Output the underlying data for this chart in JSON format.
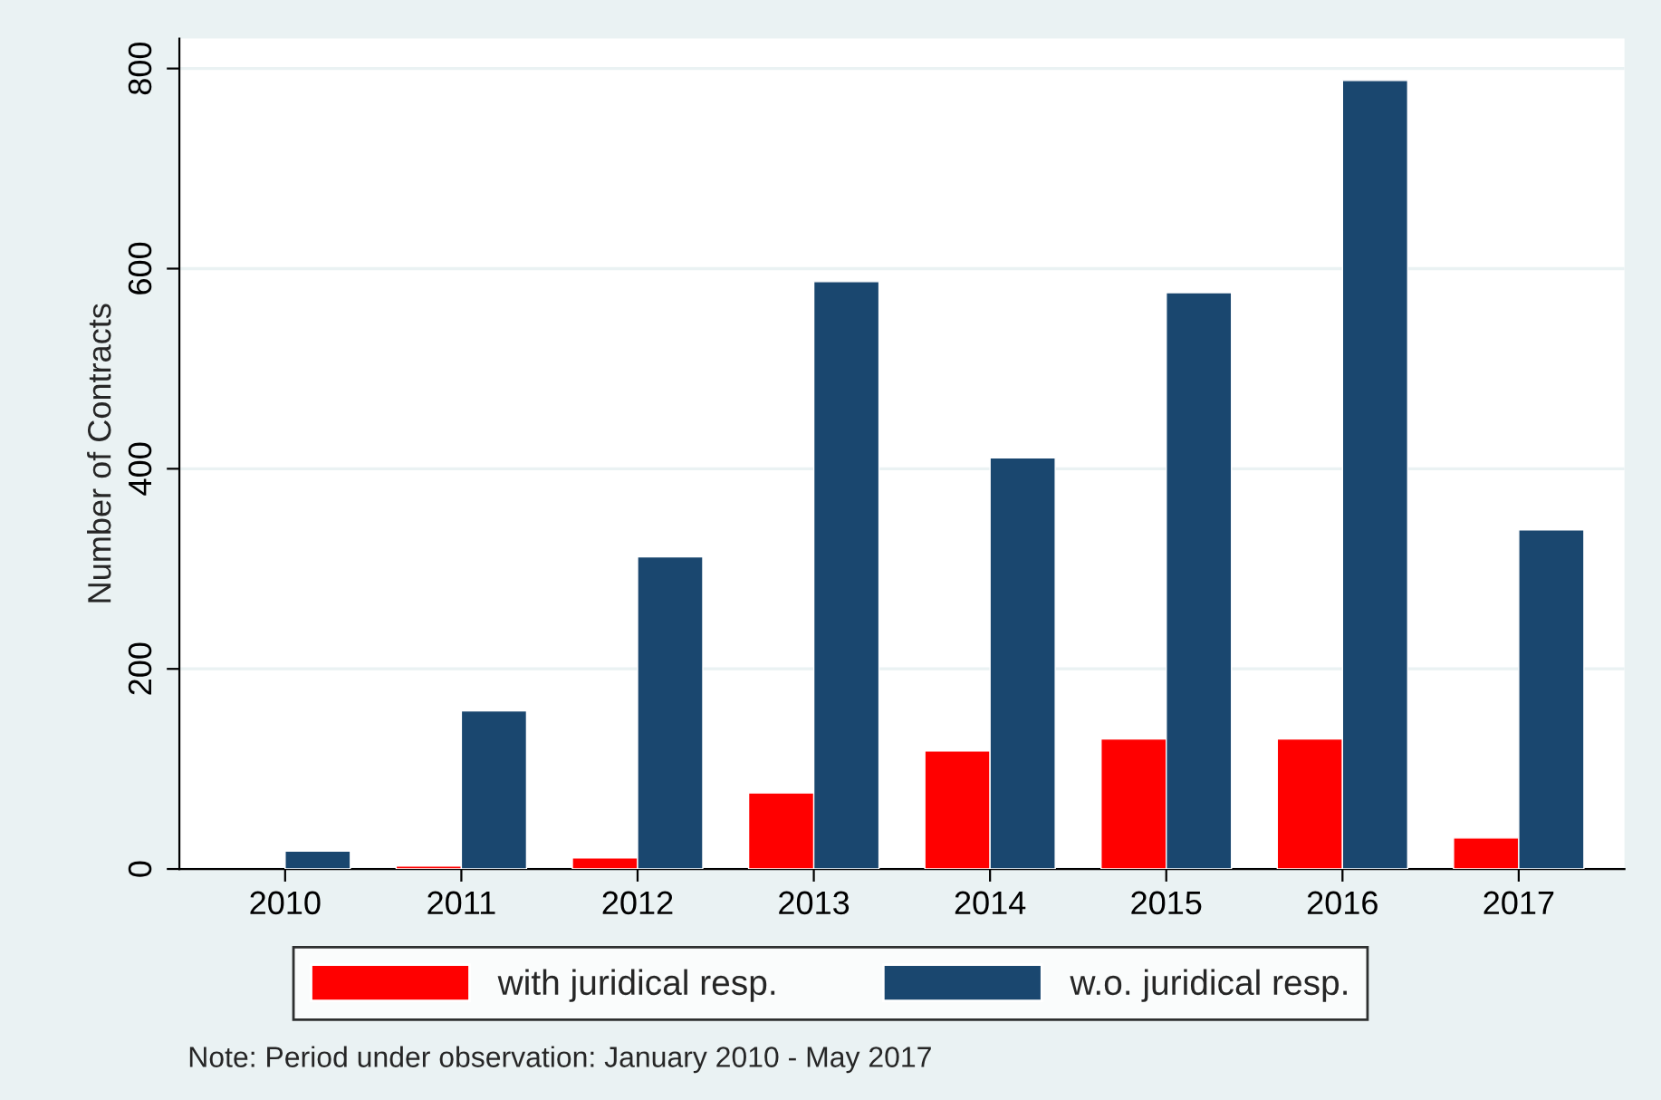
{
  "chart_data": {
    "type": "bar",
    "ylabel": "Number of Contracts",
    "categories": [
      "2010",
      "2011",
      "2012",
      "2013",
      "2014",
      "2015",
      "2016",
      "2017"
    ],
    "series": [
      {
        "name": "with juridical resp.",
        "color": "#ff0000",
        "values": [
          null,
          3,
          11,
          76,
          118,
          130,
          130,
          31
        ]
      },
      {
        "name": "w.o. juridical resp.",
        "color": "#1a476f",
        "values": [
          18,
          158,
          312,
          587,
          411,
          576,
          788,
          339
        ]
      }
    ],
    "ylim": [
      0,
      830
    ],
    "yticks": [
      0,
      200,
      400,
      600,
      800
    ],
    "grid": "y",
    "legend": "bottom",
    "annotations": [
      "Note: Period under observation: January 2010 - May 2017"
    ]
  }
}
